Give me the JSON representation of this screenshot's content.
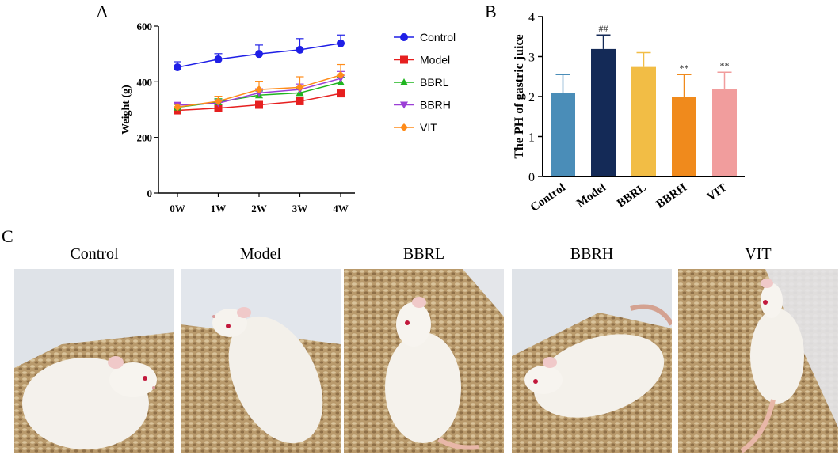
{
  "panels": {
    "a": "A",
    "b": "B",
    "c": "C"
  },
  "chart_data": [
    {
      "type": "line",
      "title": "",
      "xlabel": "",
      "ylabel": "Weight (g)",
      "ylim": [
        0,
        600
      ],
      "yticks": [
        0,
        200,
        400,
        600
      ],
      "categories": [
        "0W",
        "1W",
        "2W",
        "3W",
        "4W"
      ],
      "legend_position": "right",
      "series": [
        {
          "name": "Control",
          "color": "#1f1fe6",
          "marker": "circle",
          "values": [
            452,
            481,
            500,
            515,
            538
          ],
          "errors": [
            20,
            20,
            32,
            40,
            30
          ]
        },
        {
          "name": "Model",
          "color": "#e61f1f",
          "marker": "square",
          "values": [
            297,
            305,
            317,
            330,
            358
          ],
          "errors": [
            10,
            12,
            12,
            12,
            12
          ]
        },
        {
          "name": "BBRL",
          "color": "#1fb51f",
          "marker": "triangle-up",
          "values": [
            308,
            327,
            352,
            360,
            398
          ],
          "errors": [
            10,
            12,
            15,
            15,
            18
          ]
        },
        {
          "name": "BBRH",
          "color": "#9b3fd6",
          "marker": "triangle-down",
          "values": [
            316,
            323,
            360,
            372,
            412
          ],
          "errors": [
            10,
            12,
            15,
            20,
            25
          ]
        },
        {
          "name": "VIT",
          "color": "#ff8c1a",
          "marker": "diamond",
          "values": [
            309,
            330,
            372,
            380,
            424
          ],
          "errors": [
            10,
            18,
            30,
            38,
            38
          ]
        }
      ]
    },
    {
      "type": "bar",
      "title": "",
      "xlabel": "",
      "ylabel": "The PH of gastric juice",
      "ylim": [
        0,
        4
      ],
      "yticks": [
        0,
        1,
        2,
        3,
        4
      ],
      "categories": [
        "Control",
        "Model",
        "BBRL",
        "BBRH",
        "VIT"
      ],
      "values": [
        2.08,
        3.19,
        2.74,
        2.0,
        2.19
      ],
      "errors": [
        0.47,
        0.35,
        0.36,
        0.55,
        0.42
      ],
      "colors": [
        "#4a8db8",
        "#142a57",
        "#f2bd45",
        "#f08a1c",
        "#f19d9d"
      ],
      "annotations": [
        "",
        "##",
        "",
        "**",
        "**"
      ]
    }
  ],
  "photos": {
    "labels": [
      "Control",
      "Model",
      "BBRL",
      "BBRH",
      "VIT"
    ]
  }
}
